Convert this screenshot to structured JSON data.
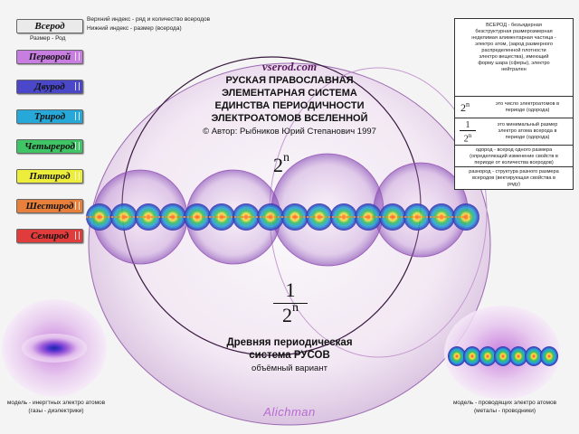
{
  "top_legend": {
    "badge": "Всерод",
    "badge_sub": "Размер - Род",
    "line1": "Верхний индекс - ряд и количество всеродов",
    "line2": "Нижний индекс - размер (всерода)"
  },
  "legend": [
    {
      "label": "Перворой",
      "color": "#c77ee0"
    },
    {
      "label": "Двурод",
      "color": "#4a48c8"
    },
    {
      "label": "Трирод",
      "color": "#26a8d8"
    },
    {
      "label": "Четырерод",
      "color": "#3fc466"
    },
    {
      "label": "Пятирод",
      "color": "#eded3c"
    },
    {
      "label": "Шестирод",
      "color": "#e8803c"
    },
    {
      "label": "Семирод",
      "color": "#e03c3c"
    }
  ],
  "center": {
    "site": "vserod.com",
    "title_lines": [
      "РУСКАЯ ПРАВОСЛАВНАЯ",
      "ЭЛЕМЕНТАРНАЯ СИСТЕМА",
      "ЕДИНСТВА ПЕРИОДИЧНОСТИ",
      "ЭЛЕКТРОАТОМОВ ВСЕЛЕННОЙ"
    ],
    "author": "© Автор: Рыбников Юрий Степанович 1997",
    "formula_base": "2",
    "formula_exp": "n",
    "frac_num": "1",
    "frac_den_base": "2",
    "frac_den_exp": "n",
    "bottom_title1": "Древняя периодическая",
    "bottom_title2": "система РУСОВ",
    "bottom_sub": "объёмный вариант"
  },
  "info": {
    "vserod_text": [
      "ВСЕРОД - безъядерная",
      "безструктурная  размерозмерная",
      "неделимая алиментарная частица -",
      "электро атом, (зарод  размерного",
      "распределенной плотности",
      "электро вещества), имеющий",
      "форму шара (сферы), электро",
      "нейтрален"
    ],
    "row2_base": "2",
    "row2_exp": "n",
    "row2_text": [
      "это число электроатомов в",
      "периоде (одорода)"
    ],
    "row3_num": "1",
    "row3_den": "2",
    "row3_exp": "n",
    "row3_text": [
      "это минимальный размер",
      "электро атома всерода в",
      "периоде (одорода)"
    ],
    "row4_text": [
      "одород - всерод одного размера",
      "(определяющий изменение свойств в",
      "периоде от количества всеродов)"
    ],
    "row5_text": [
      "разнород - структура разного размера",
      "всеродов (вектирующая свойства в",
      "ряду)"
    ]
  },
  "bottom": {
    "left_caption1": "модель - инергтных электро атомов",
    "left_caption2": "(газы - диэлектрики)",
    "right_caption1": "модель - проводящих электро атомов",
    "right_caption2": "(металы - проводники)",
    "logo": "Alichman"
  }
}
